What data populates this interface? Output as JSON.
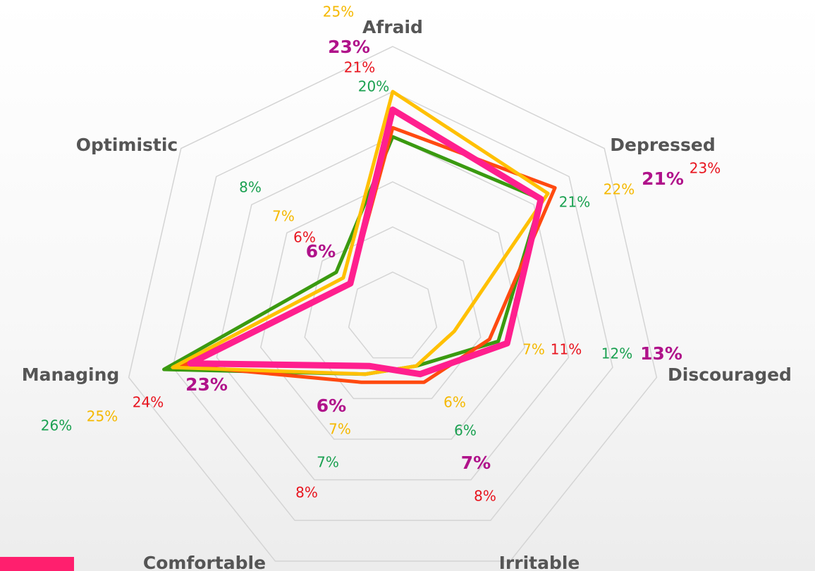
{
  "chart_data": {
    "type": "radar",
    "categories": [
      "Afraid",
      "Depressed",
      "Discouraged",
      "Irritable",
      "Comfortable",
      "Managing",
      "Optimistic"
    ],
    "rlim": [
      0,
      30
    ],
    "rticks": [
      5,
      10,
      15,
      20,
      25,
      30
    ],
    "grid": true,
    "series": [
      {
        "color": "#3a9a10",
        "label_color": "#1aa050",
        "values": [
          20,
          21,
          12,
          6,
          7,
          26,
          8
        ],
        "value_labels": [
          "20%",
          "21%",
          "12%",
          "6%",
          "7%",
          "26%",
          "8%"
        ]
      },
      {
        "color": "#ff4a10",
        "label_color": "#e8141e",
        "values": [
          21,
          23,
          11,
          8,
          8,
          24,
          6
        ],
        "value_labels": [
          "21%",
          "23%",
          "11%",
          "8%",
          "8%",
          "24%",
          "6%"
        ]
      },
      {
        "color": "#ffc000",
        "label_color": "#f5b800",
        "values": [
          25,
          22,
          7,
          6,
          7,
          25,
          7
        ],
        "value_labels": [
          "25%",
          "22%",
          "7%",
          "6%",
          "7%",
          "25%",
          "7%"
        ]
      },
      {
        "color": "#ff1f8e",
        "label_color": "#b0128a",
        "bold": true,
        "values": [
          23,
          21,
          13,
          7,
          6,
          23,
          6
        ],
        "value_labels": [
          "23%",
          "21%",
          "13%",
          "7%",
          "6%",
          "23%",
          "6%"
        ]
      }
    ]
  }
}
